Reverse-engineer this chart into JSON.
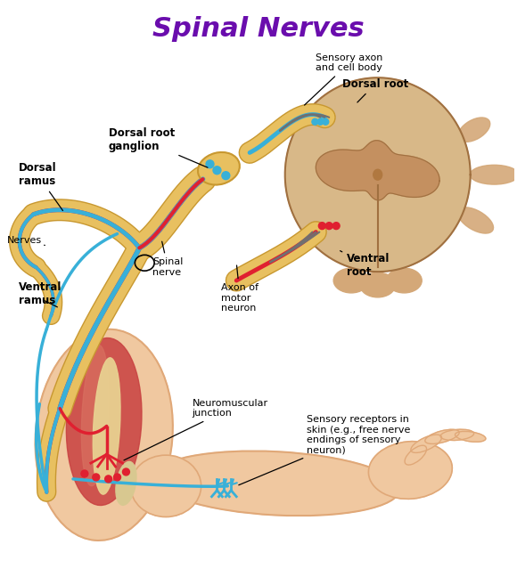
{
  "title": "Spinal Nerves",
  "title_color": "#6a0dad",
  "title_fontsize": 22,
  "title_fontweight": "bold",
  "background_color": "#ffffff",
  "labels": {
    "sensory_axon": "Sensory axon\nand cell body",
    "dorsal_root": "Dorsal root",
    "dorsal_root_ganglion": "Dorsal root\nganglion",
    "dorsal_ramus": "Dorsal\nramus",
    "nerves": "Nerves",
    "spinal_nerve": "Spinal\nnerve",
    "ventral_ramus": "Ventral\nramus",
    "axon_motor": "Axon of\nmotor\nneuron",
    "ventral_root": "Ventral\nroot",
    "neuromuscular": "Neuromuscular\njunction",
    "sensory_receptors": "Sensory receptors in\nskin (e.g., free nerve\nendings of sensory\nneuron)"
  },
  "colors": {
    "nerve_yellow": "#E8C060",
    "nerve_yellow_dark": "#C89830",
    "nerve_blue": "#38B0D8",
    "nerve_red": "#E02030",
    "nerve_gray": "#707070",
    "sc_outer": "#D4A878",
    "sc_inner": "#C49060",
    "sc_gray": "#B07840",
    "sc_outline": "#A07040",
    "sc_white": "#D8B888",
    "bone_col": "#E8D090",
    "skin_col": "#F0C8A0",
    "skin_dark": "#E0A878",
    "muscle_red": "#C84040",
    "muscle_light": "#D87060"
  }
}
